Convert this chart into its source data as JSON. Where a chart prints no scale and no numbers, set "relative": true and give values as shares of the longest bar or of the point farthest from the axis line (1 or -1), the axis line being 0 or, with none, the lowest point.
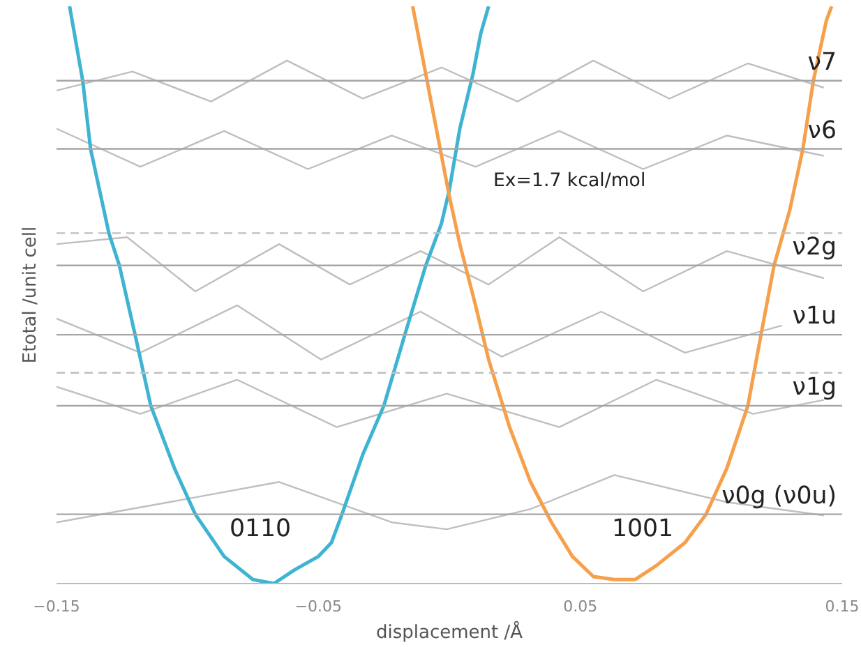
{
  "chart_data": {
    "type": "line",
    "relative": true,
    "xlabel": "displacement /Å",
    "ylabel": "Etotal /unit cell",
    "xlim": [
      -0.15,
      0.15
    ],
    "xticks": [
      -0.15,
      -0.05,
      0.05,
      0.15
    ],
    "grid": false,
    "marker": "none",
    "line_style": "solid",
    "series": [
      {
        "color": "#bfbfbf",
        "x": [
          -0.15,
          -0.121,
          -0.091,
          -0.062,
          -0.033,
          -0.003,
          0.026,
          0.055,
          0.084,
          0.114,
          0.143
        ],
        "values": [
          0.854,
          0.887,
          0.835,
          0.906,
          0.84,
          0.894,
          0.835,
          0.906,
          0.84,
          0.901,
          0.859
        ]
      },
      {
        "color": "#bfbfbf",
        "x": [
          -0.15,
          -0.118,
          -0.086,
          -0.054,
          -0.022,
          0.01,
          0.042,
          0.074,
          0.106,
          0.143
        ],
        "values": [
          0.788,
          0.722,
          0.784,
          0.718,
          0.776,
          0.722,
          0.784,
          0.718,
          0.776,
          0.741
        ]
      },
      {
        "color": "#bfbfbf",
        "x": [
          -0.15,
          -0.123,
          -0.097,
          -0.065,
          -0.038,
          -0.011,
          0.015,
          0.042,
          0.074,
          0.106,
          0.143
        ],
        "values": [
          0.588,
          0.6,
          0.506,
          0.588,
          0.518,
          0.576,
          0.518,
          0.6,
          0.506,
          0.576,
          0.529
        ]
      },
      {
        "color": "#bfbfbf",
        "x": [
          -0.15,
          -0.118,
          -0.081,
          -0.049,
          -0.011,
          0.02,
          0.058,
          0.09,
          0.127
        ],
        "values": [
          0.459,
          0.4,
          0.482,
          0.388,
          0.471,
          0.393,
          0.471,
          0.4,
          0.447
        ]
      },
      {
        "color": "#bfbfbf",
        "x": [
          -0.15,
          -0.118,
          -0.081,
          -0.043,
          -0.001,
          0.042,
          0.079,
          0.116,
          0.143
        ],
        "values": [
          0.341,
          0.294,
          0.353,
          0.271,
          0.329,
          0.271,
          0.353,
          0.294,
          0.318
        ]
      },
      {
        "color": "#bfbfbf",
        "x": [
          -0.15,
          -0.107,
          -0.065,
          -0.022,
          -0.001,
          0.031,
          0.063,
          0.106,
          0.143
        ],
        "values": [
          0.106,
          0.141,
          0.176,
          0.106,
          0.094,
          0.129,
          0.188,
          0.141,
          0.118
        ]
      },
      {
        "color": "#3fb4d2",
        "x": [
          -0.145,
          -0.14,
          -0.137,
          -0.13,
          -0.126,
          -0.12,
          -0.114,
          -0.105,
          -0.097,
          -0.086,
          -0.075,
          -0.067,
          -0.059,
          -0.05,
          -0.045,
          -0.041,
          -0.033,
          -0.025,
          -0.017,
          -0.009,
          -0.003,
          0.0,
          0.004,
          0.009,
          0.012,
          0.015
        ],
        "values": [
          1.0,
          0.871,
          0.753,
          0.607,
          0.551,
          0.431,
          0.308,
          0.2,
          0.12,
          0.047,
          0.007,
          0.0,
          0.024,
          0.047,
          0.071,
          0.12,
          0.224,
          0.308,
          0.431,
          0.551,
          0.624,
          0.682,
          0.788,
          0.882,
          0.953,
          1.0
        ]
      },
      {
        "color": "#f7a04b",
        "x": [
          -0.014,
          -0.01,
          -0.006,
          -0.002,
          0.0,
          0.004,
          0.01,
          0.015,
          0.023,
          0.031,
          0.039,
          0.047,
          0.055,
          0.063,
          0.071,
          0.079,
          0.09,
          0.098,
          0.106,
          0.114,
          0.119,
          0.124,
          0.13,
          0.135,
          0.139,
          0.144,
          0.146
        ],
        "values": [
          1.0,
          0.906,
          0.812,
          0.718,
          0.671,
          0.588,
          0.482,
          0.388,
          0.271,
          0.176,
          0.106,
          0.047,
          0.012,
          0.007,
          0.007,
          0.031,
          0.071,
          0.12,
          0.2,
          0.308,
          0.431,
          0.551,
          0.647,
          0.753,
          0.871,
          0.976,
          1.0
        ]
      }
    ],
    "ref_lines": [
      {
        "axis": "y",
        "value": 0.871,
        "label": "ν7",
        "color": "#a6a6a6",
        "line_style": "solid"
      },
      {
        "axis": "y",
        "value": 0.753,
        "label": "ν6",
        "color": "#a6a6a6",
        "line_style": "solid"
      },
      {
        "axis": "y",
        "value": 0.607,
        "label": null,
        "color": "#bfbfbf",
        "line_style": "dashed"
      },
      {
        "axis": "y",
        "value": 0.551,
        "label": "ν2g",
        "color": "#a6a6a6",
        "line_style": "solid"
      },
      {
        "axis": "y",
        "value": 0.431,
        "label": "ν1u",
        "color": "#a6a6a6",
        "line_style": "solid"
      },
      {
        "axis": "y",
        "value": 0.365,
        "label": null,
        "color": "#bfbfbf",
        "line_style": "dashed"
      },
      {
        "axis": "y",
        "value": 0.308,
        "label": "ν1g",
        "color": "#a6a6a6",
        "line_style": "solid"
      },
      {
        "axis": "y",
        "value": 0.12,
        "label": "ν0g (ν0u)",
        "color": "#a6a6a6",
        "line_style": "solid"
      }
    ],
    "annotations": [
      "Ex=1.7 kcal/mol",
      "0110",
      "1001"
    ]
  }
}
